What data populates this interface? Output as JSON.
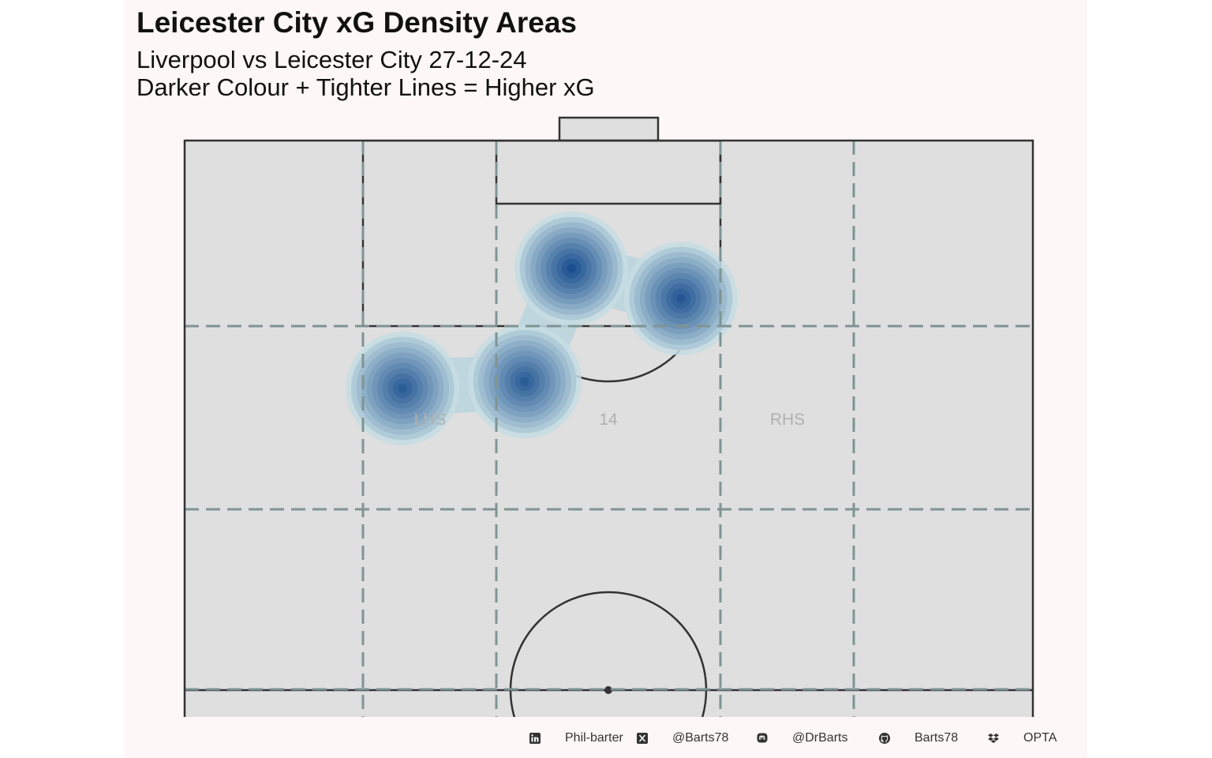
{
  "header": {
    "title": "Leicester City xG Density Areas",
    "subtitle_line1": "Liverpool vs Leicester City 27-12-24",
    "subtitle_line2": "Darker Colour + Tighter Lines = Higher xG"
  },
  "zones": {
    "left": "LHS",
    "center": "14",
    "right": "RHS"
  },
  "footer": {
    "linkedin": "Phil-barter",
    "x": "@Barts78",
    "mastodon": "@DrBarts",
    "github": "Barts78",
    "data_source": "OPTA"
  },
  "colors": {
    "panel_background": "#fdf7f7",
    "pitch_fill": "#dfdfdf",
    "pitch_lines": "#333333",
    "zone_lines": "#7f9492",
    "zone_text": "#b0b0b0",
    "density_light": "#c6dde3",
    "density_dark": "#1a4f8f"
  },
  "chart_data": {
    "type": "heatmap",
    "title": "Leicester City xG Density Areas",
    "subtitle": "Liverpool vs Leicester City 27-12-24",
    "pitch_region": "attacking half",
    "zone_labels": [
      "LHS",
      "14",
      "RHS"
    ],
    "density_peaks": [
      {
        "x": 86.3,
        "y": 58.5,
        "relative_xg": 0.95
      },
      {
        "x": 88.9,
        "y": 45.6,
        "relative_xg": 1.0
      },
      {
        "x": 79.1,
        "y": 40.1,
        "relative_xg": 0.9
      },
      {
        "x": 78.5,
        "y": 25.7,
        "relative_xg": 0.9
      }
    ],
    "grid": true,
    "legend": "none"
  }
}
